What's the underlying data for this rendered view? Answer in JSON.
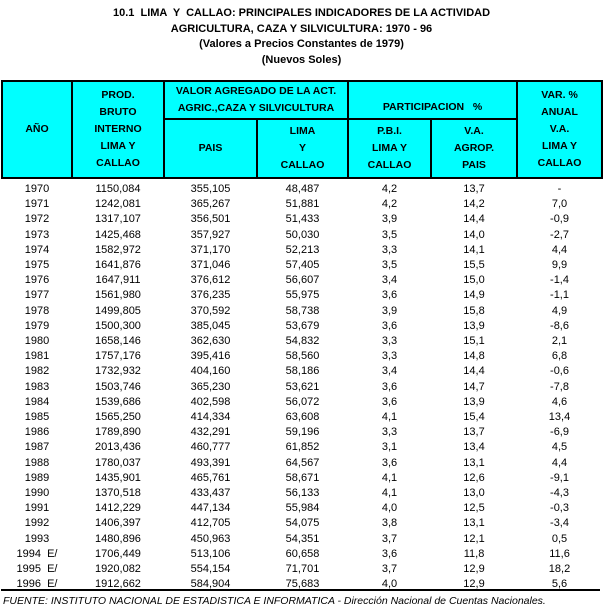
{
  "title": {
    "line1": "10.1  LIMA  Y  CALLAO: PRINCIPALES INDICADORES DE LA ACTIVIDAD",
    "line2": "AGRICULTURA, CAZA Y SILVICULTURA: 1970 - 96",
    "line3": "(Valores a Precios Constantes de 1979)",
    "line4": "(Nuevos Soles)"
  },
  "colors": {
    "header_bg": "#00ffff",
    "border": "#000000"
  },
  "table": {
    "header": {
      "ano": "AÑO",
      "pbi_lima_callao_group": "PROD.\nBRUTO\nINTERNO\nLIMA Y\nCALLAO",
      "valor_agregado_group": "VALOR AGREGADO DE LA ACT.\nAGRIC.,CAZA Y SILVICULTURA",
      "participacion_group": "PARTICIPACION   %",
      "var_anual": "VAR. %\nANUAL\nV.A.\nLIMA Y\nCALLAO",
      "pais": "PAIS",
      "lima_y_callao": "LIMA\nY\nCALLAO",
      "pbi_lima_y_callao": "P.B.I.\nLIMA Y\nCALLAO",
      "va_agrop_pais": "V.A.\nAGROP.\nPAIS"
    },
    "rows": [
      [
        "1970",
        "1150,084",
        "355,105",
        "48,487",
        "4,2",
        "13,7",
        "-"
      ],
      [
        "1971",
        "1242,081",
        "365,267",
        "51,881",
        "4,2",
        "14,2",
        "7,0"
      ],
      [
        "1972",
        "1317,107",
        "356,501",
        "51,433",
        "3,9",
        "14,4",
        "-0,9"
      ],
      [
        "1973",
        "1425,468",
        "357,927",
        "50,030",
        "3,5",
        "14,0",
        "-2,7"
      ],
      [
        "1974",
        "1582,972",
        "371,170",
        "52,213",
        "3,3",
        "14,1",
        "4,4"
      ],
      [
        "1975",
        "1641,876",
        "371,046",
        "57,405",
        "3,5",
        "15,5",
        "9,9"
      ],
      [
        "1976",
        "1647,911",
        "376,612",
        "56,607",
        "3,4",
        "15,0",
        "-1,4"
      ],
      [
        "1977",
        "1561,980",
        "376,235",
        "55,975",
        "3,6",
        "14,9",
        "-1,1"
      ],
      [
        "1978",
        "1499,805",
        "370,592",
        "58,738",
        "3,9",
        "15,8",
        "4,9"
      ],
      [
        "1979",
        "1500,300",
        "385,045",
        "53,679",
        "3,6",
        "13,9",
        "-8,6"
      ],
      [
        "1980",
        "1658,146",
        "362,630",
        "54,832",
        "3,3",
        "15,1",
        "2,1"
      ],
      [
        "1981",
        "1757,176",
        "395,416",
        "58,560",
        "3,3",
        "14,8",
        "6,8"
      ],
      [
        "1982",
        "1732,932",
        "404,160",
        "58,186",
        "3,4",
        "14,4",
        "-0,6"
      ],
      [
        "1983",
        "1503,746",
        "365,230",
        "53,621",
        "3,6",
        "14,7",
        "-7,8"
      ],
      [
        "1984",
        "1539,686",
        "402,598",
        "56,072",
        "3,6",
        "13,9",
        "4,6"
      ],
      [
        "1985",
        "1565,250",
        "414,334",
        "63,608",
        "4,1",
        "15,4",
        "13,4"
      ],
      [
        "1986",
        "1789,890",
        "432,291",
        "59,196",
        "3,3",
        "13,7",
        "-6,9"
      ],
      [
        "1987",
        "2013,436",
        "460,777",
        "61,852",
        "3,1",
        "13,4",
        "4,5"
      ],
      [
        "1988",
        "1780,037",
        "493,391",
        "64,567",
        "3,6",
        "13,1",
        "4,4"
      ],
      [
        "1989",
        "1435,901",
        "465,761",
        "58,671",
        "4,1",
        "12,6",
        "-9,1"
      ],
      [
        "1990",
        "1370,518",
        "433,437",
        "56,133",
        "4,1",
        "13,0",
        "-4,3"
      ],
      [
        "1991",
        "1412,229",
        "447,134",
        "55,984",
        "4,0",
        "12,5",
        "-0,3"
      ],
      [
        "1992",
        "1406,397",
        "412,705",
        "54,075",
        "3,8",
        "13,1",
        "-3,4"
      ],
      [
        "1993",
        "1480,896",
        "450,963",
        "54,351",
        "3,7",
        "12,1",
        "0,5"
      ],
      [
        "1994  E/",
        "1706,449",
        "513,106",
        "60,658",
        "3,6",
        "11,8",
        "11,6"
      ],
      [
        "1995  E/",
        "1920,082",
        "554,154",
        "71,701",
        "3,7",
        "12,9",
        "18,2"
      ],
      [
        "1996  E/",
        "1912,662",
        "584,904",
        "75,683",
        "4,0",
        "12,9",
        "5,6"
      ]
    ]
  },
  "footer": {
    "source": "FUENTE: INSTITUTO NACIONAL DE ESTADISTICA E INFORMATICA - Dirección Nacional de Cuentas Nacionales."
  }
}
